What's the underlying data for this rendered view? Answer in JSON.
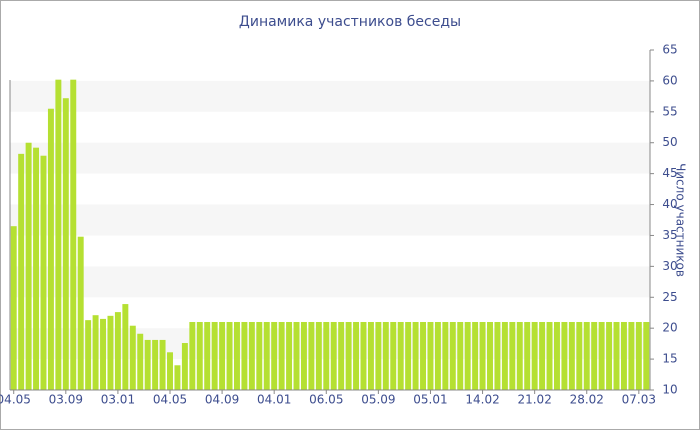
{
  "chart_data": {
    "type": "bar",
    "title": "Динамика участников беседы",
    "y_label": "Число участников",
    "categories": [
      "04.05",
      null,
      null,
      null,
      null,
      null,
      null,
      "03.09",
      null,
      null,
      null,
      null,
      null,
      null,
      "03.01",
      null,
      null,
      null,
      null,
      null,
      null,
      "04.05",
      null,
      null,
      null,
      null,
      null,
      null,
      "04.09",
      null,
      null,
      null,
      null,
      null,
      null,
      "04.01",
      null,
      null,
      null,
      null,
      null,
      null,
      "06.05",
      null,
      null,
      null,
      null,
      null,
      null,
      "05.09",
      null,
      null,
      null,
      null,
      null,
      null,
      "05.01",
      null,
      null,
      null,
      null,
      null,
      null,
      "14.02",
      null,
      null,
      null,
      null,
      null,
      null,
      "21.02",
      null,
      null,
      null,
      null,
      null,
      null,
      "28.02",
      null,
      null,
      null,
      null,
      null,
      null,
      "07.03",
      null
    ],
    "values": [
      36.5,
      48.2,
      50,
      49.2,
      47.9,
      55.5,
      60.2,
      57.2,
      60.2,
      34.8,
      21.3,
      22.1,
      21.5,
      22,
      22.6,
      23.9,
      20.4,
      19.1,
      18.1,
      18.1,
      18.1,
      16.1,
      14,
      17.6,
      21,
      21,
      21,
      21,
      21,
      21,
      21,
      21,
      21,
      21,
      21,
      21,
      21,
      21,
      21,
      21,
      21,
      21,
      21,
      21,
      21,
      21,
      21,
      21,
      21,
      21,
      21,
      21,
      21,
      21,
      21,
      21,
      21,
      21,
      21,
      21,
      21,
      21,
      21,
      21,
      21,
      21,
      21,
      21,
      21,
      21,
      21,
      21,
      21,
      21,
      21,
      21,
      21,
      21,
      21,
      21,
      21,
      21,
      21,
      21,
      21,
      21
    ],
    "color": "#b5e032",
    "ylim": [
      10,
      65
    ],
    "yticks": [
      10,
      15,
      20,
      25,
      30,
      35,
      40,
      45,
      50,
      55,
      60,
      65
    ],
    "grid": "bands",
    "y_axis_side": "right"
  }
}
